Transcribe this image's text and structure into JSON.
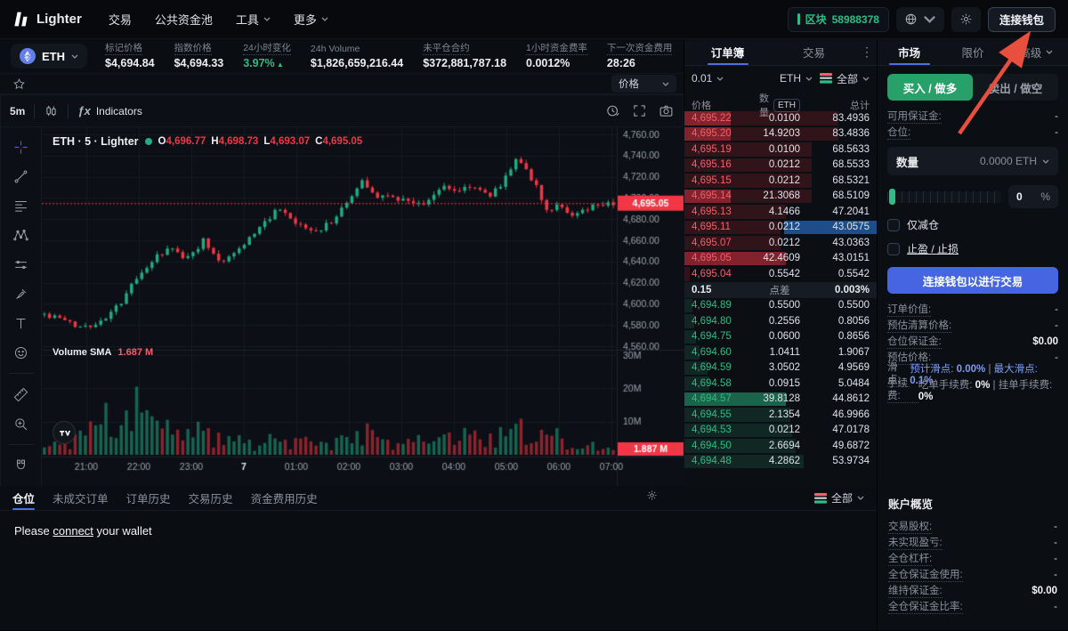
{
  "colors": {
    "accent_blue": "#4c6fe8",
    "buy_green": "#27a06a",
    "bid_green": "#2ebd85",
    "ask_red": "#f23645",
    "cta_blue": "#4566e0",
    "link_blue": "#7c9cf5",
    "arrow_red": "#e94f3d"
  },
  "topnav": {
    "brand": "Lighter",
    "menu": [
      {
        "name": "trade",
        "label": "交易",
        "caret": false
      },
      {
        "name": "public-pools",
        "label": "公共资金池",
        "caret": false
      },
      {
        "name": "tools",
        "label": "工具",
        "caret": true
      },
      {
        "name": "more",
        "label": "更多",
        "caret": true
      }
    ],
    "block_label": "区块",
    "block_number": "58988378",
    "connect_label": "连接钱包"
  },
  "ticker": {
    "symbol": "ETH",
    "stats": [
      {
        "name": "mark-price",
        "label": "标记价格",
        "value": "$4,694.84"
      },
      {
        "name": "index-price",
        "label": "指数价格",
        "value": "$4,694.33"
      },
      {
        "name": "change-24h",
        "label": "24小时变化",
        "value": "3.97%",
        "up": true
      },
      {
        "name": "volume-24h",
        "label": "24h Volume",
        "value": "$1,826,659,216.44",
        "plain": true
      },
      {
        "name": "open-interest",
        "label": "未平仓合约",
        "value": "$372,881,787.18"
      },
      {
        "name": "funding-rate-1h",
        "label": "1小时资金费率",
        "value": "0.0012%"
      },
      {
        "name": "next-funding",
        "label": "下一次资金费用",
        "value": "28:26"
      }
    ]
  },
  "chart": {
    "watchlist_dropdown": "价格",
    "interval": "5m",
    "indicators_label": "Indicators",
    "legend": {
      "title": "ETH · 5 · Lighter",
      "o_label": "O",
      "o": "4,696.77",
      "h_label": "H",
      "h": "4,698.73",
      "l_label": "L",
      "l": "4,693.07",
      "c_label": "C",
      "c": "4,695.05"
    },
    "volume_label": "Volume SMA",
    "volume_value": "1.687 M",
    "tools": [
      "crosshair",
      "trend-line",
      "fib-retracement",
      "xabcd-pattern",
      "position",
      "brush",
      "text",
      "emoji",
      "ruler",
      "zoom-in",
      "magnet",
      "edit-lock"
    ],
    "chart_data": {
      "type": "candlestick",
      "interval": "5m",
      "price_ticks": [
        4760,
        4740,
        4720,
        4700,
        4680,
        4660,
        4640,
        4620,
        4600,
        4580,
        4560
      ],
      "time_ticks": [
        "21:00",
        "22:00",
        "23:00",
        "7",
        "01:00",
        "02:00",
        "03:00",
        "04:00",
        "05:00",
        "06:00",
        "07:00"
      ],
      "volume_ticks": [
        "30M",
        "20M",
        "10M"
      ],
      "last_price": "4,695.05",
      "last_price_value": 4695.05,
      "last_volume": "1.887 M",
      "candle_count": 112,
      "price_anchors": [
        [
          0,
          4590
        ],
        [
          0.03,
          4585
        ],
        [
          0.06,
          4578
        ],
        [
          0.1,
          4583
        ],
        [
          0.13,
          4598
        ],
        [
          0.16,
          4622
        ],
        [
          0.19,
          4641
        ],
        [
          0.22,
          4652
        ],
        [
          0.25,
          4643
        ],
        [
          0.28,
          4660
        ],
        [
          0.31,
          4640
        ],
        [
          0.34,
          4651
        ],
        [
          0.38,
          4673
        ],
        [
          0.41,
          4689
        ],
        [
          0.44,
          4676
        ],
        [
          0.47,
          4668
        ],
        [
          0.5,
          4675
        ],
        [
          0.53,
          4694
        ],
        [
          0.56,
          4717
        ],
        [
          0.58,
          4703
        ],
        [
          0.61,
          4701
        ],
        [
          0.64,
          4698
        ],
        [
          0.67,
          4693
        ],
        [
          0.7,
          4713
        ],
        [
          0.72,
          4706
        ],
        [
          0.75,
          4712
        ],
        [
          0.78,
          4702
        ],
        [
          0.8,
          4710
        ],
        [
          0.83,
          4739
        ],
        [
          0.86,
          4716
        ],
        [
          0.88,
          4689
        ],
        [
          0.91,
          4693
        ],
        [
          0.93,
          4681
        ],
        [
          0.96,
          4691
        ],
        [
          0.99,
          4696
        ],
        [
          1,
          4695
        ]
      ],
      "volume_anchors_m": [
        [
          0,
          2
        ],
        [
          0.04,
          4
        ],
        [
          0.07,
          6
        ],
        [
          0.1,
          16
        ],
        [
          0.13,
          9
        ],
        [
          0.16,
          14
        ],
        [
          0.19,
          10
        ],
        [
          0.22,
          12
        ],
        [
          0.25,
          6
        ],
        [
          0.28,
          8
        ],
        [
          0.31,
          4
        ],
        [
          0.34,
          6
        ],
        [
          0.37,
          3
        ],
        [
          0.4,
          5
        ],
        [
          0.43,
          3
        ],
        [
          0.46,
          4
        ],
        [
          0.5,
          3
        ],
        [
          0.53,
          6
        ],
        [
          0.56,
          8
        ],
        [
          0.59,
          4
        ],
        [
          0.62,
          3
        ],
        [
          0.65,
          6
        ],
        [
          0.68,
          3
        ],
        [
          0.71,
          5
        ],
        [
          0.74,
          7
        ],
        [
          0.77,
          4
        ],
        [
          0.8,
          6
        ],
        [
          0.83,
          10
        ],
        [
          0.86,
          5
        ],
        [
          0.89,
          7
        ],
        [
          0.92,
          3
        ],
        [
          0.95,
          5
        ],
        [
          0.98,
          2
        ],
        [
          1,
          1.887
        ]
      ]
    }
  },
  "orderbook": {
    "tabs": [
      {
        "name": "orderbook",
        "label": "订单簿",
        "active": true
      },
      {
        "name": "trades",
        "label": "交易",
        "active": false
      }
    ],
    "tick": "0.01",
    "unit": "ETH",
    "filter": "全部",
    "columns": [
      "价格",
      "数量",
      "总计"
    ],
    "unit_badge": "ETH",
    "asks": [
      {
        "p": "4,695.22",
        "q": "0.0100",
        "t": "83.4936",
        "depth": 80,
        "flash": 24
      },
      {
        "p": "4,695.20",
        "q": "14.9203",
        "t": "83.4836",
        "depth": 80,
        "flash": 24
      },
      {
        "p": "4,695.19",
        "q": "0.0100",
        "t": "68.5633",
        "depth": 66
      },
      {
        "p": "4,695.16",
        "q": "0.0212",
        "t": "68.5533",
        "depth": 66
      },
      {
        "p": "4,695.15",
        "q": "0.0212",
        "t": "68.5321",
        "depth": 66
      },
      {
        "p": "4,695.14",
        "q": "21.3068",
        "t": "68.5109",
        "depth": 66,
        "flash": 24
      },
      {
        "p": "4,695.13",
        "q": "4.1466",
        "t": "47.2041",
        "depth": 53
      },
      {
        "p": "4,695.11",
        "q": "0.0212",
        "t": "43.0575",
        "depth": 50,
        "blue": true
      },
      {
        "p": "4,695.07",
        "q": "0.0212",
        "t": "43.0363",
        "depth": 50
      },
      {
        "p": "4,695.05",
        "q": "42.4609",
        "t": "43.0151",
        "depth": 50,
        "flash": 53
      },
      {
        "p": "4,695.04",
        "q": "0.5542",
        "t": "0.5542",
        "depth": 3
      }
    ],
    "spread": {
      "value": "0.15",
      "label": "点差",
      "pct": "0.003%"
    },
    "bids": [
      {
        "p": "4,694.89",
        "q": "0.5500",
        "t": "0.5500",
        "depth": 4
      },
      {
        "p": "4,694.80",
        "q": "0.2556",
        "t": "0.8056",
        "depth": 5
      },
      {
        "p": "4,694.75",
        "q": "0.0600",
        "t": "0.8656",
        "depth": 6
      },
      {
        "p": "4,694.60",
        "q": "1.0411",
        "t": "1.9067",
        "depth": 8
      },
      {
        "p": "4,694.59",
        "q": "3.0502",
        "t": "4.9569",
        "depth": 12
      },
      {
        "p": "4,694.58",
        "q": "0.0915",
        "t": "5.0484",
        "depth": 13
      },
      {
        "p": "4,694.57",
        "q": "39.8128",
        "t": "44.8612",
        "depth": 53,
        "flash": 53
      },
      {
        "p": "4,694.55",
        "q": "2.1354",
        "t": "46.9966",
        "depth": 55
      },
      {
        "p": "4,694.53",
        "q": "0.0212",
        "t": "47.0178",
        "depth": 56
      },
      {
        "p": "4,694.50",
        "q": "2.6694",
        "t": "49.6872",
        "depth": 58
      },
      {
        "p": "4,694.48",
        "q": "4.2862",
        "t": "53.9734",
        "depth": 62
      }
    ]
  },
  "trade_panel": {
    "tabs": [
      {
        "name": "market",
        "label": "市场",
        "active": true
      },
      {
        "name": "limit",
        "label": "限价",
        "active": false
      },
      {
        "name": "advanced",
        "label": "高级",
        "active": false,
        "caret": true
      }
    ],
    "buy_label": "买入 / 做多",
    "sell_label": "卖出 / 做空",
    "margin_rows": [
      {
        "label": "可用保证金:",
        "value": "-"
      },
      {
        "label": "仓位:",
        "value": "-"
      }
    ],
    "qty_label": "数量",
    "qty_value": "0.0000 ETH",
    "slider_pct": "0",
    "pct_sign": "%",
    "reduce_only": "仅减仓",
    "tpsl": "止盈 / 止损",
    "cta": "连接钱包以进行交易",
    "details": [
      {
        "label": "订单价值:",
        "value": "-"
      },
      {
        "label": "预估清算价格:",
        "value": "-"
      },
      {
        "label": "仓位保证金:",
        "value": "$0.00",
        "strong": true
      },
      {
        "label": "预估价格:",
        "value": "-"
      },
      {
        "label": "滑点:",
        "segments": [
          {
            "t": "预计滑点: ",
            "c": "blue"
          },
          {
            "t": "0.00%",
            "c": "blue",
            "b": true
          },
          {
            "t": " | ",
            "c": "dim"
          },
          {
            "t": "最大滑点: ",
            "c": "blue"
          },
          {
            "t": "0.1%",
            "c": "blue",
            "b": true
          }
        ]
      },
      {
        "label": "手续费:",
        "segments": [
          {
            "t": "吃单手续费: ",
            "c": "dim"
          },
          {
            "t": "0%",
            "c": "white",
            "b": true
          },
          {
            "t": " | ",
            "c": "dim"
          },
          {
            "t": "挂单手续费: ",
            "c": "dim"
          },
          {
            "t": "0%",
            "c": "white",
            "b": true
          }
        ]
      }
    ]
  },
  "positions": {
    "tabs": [
      {
        "name": "positions",
        "label": "仓位",
        "active": true
      },
      {
        "name": "open-orders",
        "label": "未成交订单",
        "active": false
      },
      {
        "name": "order-history",
        "label": "订单历史",
        "active": false
      },
      {
        "name": "trade-history",
        "label": "交易历史",
        "active": false
      },
      {
        "name": "funding-history",
        "label": "资金费用历史",
        "active": false
      }
    ],
    "filter": "全部",
    "message": {
      "pre": "Please ",
      "link": "connect",
      "post": " your wallet"
    }
  },
  "account": {
    "title": "账户概览",
    "rows": [
      {
        "label": "交易股权:",
        "value": "-"
      },
      {
        "label": "未实现盈亏:",
        "value": "-"
      },
      {
        "label": "全仓杠杆:",
        "value": "-"
      },
      {
        "label": "全仓保证金使用:",
        "value": "-"
      },
      {
        "label": "维持保证金:",
        "value": "$0.00",
        "strong": true
      },
      {
        "label": "全仓保证金比率:",
        "value": "-"
      }
    ]
  }
}
